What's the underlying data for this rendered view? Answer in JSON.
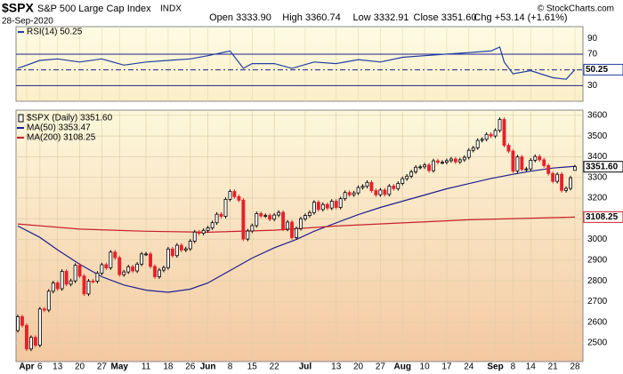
{
  "chart_data": {
    "type": "candlestick",
    "symbol": "$SPX",
    "name": "S&P 500 Large Cap Index",
    "exchange": "INDX",
    "date": "28-Sep-2020",
    "quote": [
      "Open 3333.90",
      "High 3360.74",
      "Low 3332.91",
      "Close 3351.60",
      "Chg +53.14 (+1.61%)"
    ],
    "credit": "© StockCharts.com",
    "x": [
      "2020-03-30",
      "2020-03-31",
      "2020-04-01",
      "2020-04-02",
      "2020-04-03",
      "2020-04-06",
      "2020-04-07",
      "2020-04-08",
      "2020-04-09",
      "2020-04-13",
      "2020-04-14",
      "2020-04-15",
      "2020-04-16",
      "2020-04-17",
      "2020-04-20",
      "2020-04-21",
      "2020-04-22",
      "2020-04-23",
      "2020-04-24",
      "2020-04-27",
      "2020-04-28",
      "2020-04-29",
      "2020-04-30",
      "2020-05-01",
      "2020-05-04",
      "2020-05-05",
      "2020-05-06",
      "2020-05-07",
      "2020-05-08",
      "2020-05-11",
      "2020-05-12",
      "2020-05-13",
      "2020-05-14",
      "2020-05-15",
      "2020-05-18",
      "2020-05-19",
      "2020-05-20",
      "2020-05-21",
      "2020-05-22",
      "2020-05-26",
      "2020-05-27",
      "2020-05-28",
      "2020-05-29",
      "2020-06-01",
      "2020-06-02",
      "2020-06-03",
      "2020-06-04",
      "2020-06-05",
      "2020-06-08",
      "2020-06-09",
      "2020-06-10",
      "2020-06-11",
      "2020-06-12",
      "2020-06-15",
      "2020-06-16",
      "2020-06-17",
      "2020-06-18",
      "2020-06-19",
      "2020-06-22",
      "2020-06-23",
      "2020-06-24",
      "2020-06-25",
      "2020-06-26",
      "2020-06-29",
      "2020-06-30",
      "2020-07-01",
      "2020-07-02",
      "2020-07-06",
      "2020-07-07",
      "2020-07-08",
      "2020-07-09",
      "2020-07-10",
      "2020-07-13",
      "2020-07-14",
      "2020-07-15",
      "2020-07-16",
      "2020-07-17",
      "2020-07-20",
      "2020-07-21",
      "2020-07-22",
      "2020-07-23",
      "2020-07-24",
      "2020-07-27",
      "2020-07-28",
      "2020-07-29",
      "2020-07-30",
      "2020-07-31",
      "2020-08-03",
      "2020-08-04",
      "2020-08-05",
      "2020-08-06",
      "2020-08-07",
      "2020-08-10",
      "2020-08-11",
      "2020-08-12",
      "2020-08-13",
      "2020-08-14",
      "2020-08-17",
      "2020-08-18",
      "2020-08-19",
      "2020-08-20",
      "2020-08-21",
      "2020-08-24",
      "2020-08-25",
      "2020-08-26",
      "2020-08-27",
      "2020-08-28",
      "2020-08-31",
      "2020-09-01",
      "2020-09-02",
      "2020-09-03",
      "2020-09-04",
      "2020-09-08",
      "2020-09-09",
      "2020-09-10",
      "2020-09-11",
      "2020-09-14",
      "2020-09-15",
      "2020-09-16",
      "2020-09-17",
      "2020-09-18",
      "2020-09-21",
      "2020-09-22",
      "2020-09-23",
      "2020-09-24",
      "2020-09-25",
      "2020-09-28"
    ],
    "open": [
      2560,
      2627,
      2585,
      2471,
      2527,
      2489,
      2664,
      2659,
      2750,
      2790,
      2762,
      2846,
      2784,
      2800,
      2875,
      2823,
      2737,
      2799,
      2798,
      2837,
      2878,
      2863,
      2939,
      2912,
      2830,
      2843,
      2868,
      2848,
      2881,
      2930,
      2930,
      2870,
      2820,
      2852,
      2864,
      2954,
      2922,
      2972,
      2949,
      2955,
      2992,
      3036,
      3030,
      3044,
      3056,
      3081,
      3122,
      3112,
      3194,
      3232,
      3207,
      3190,
      3002,
      3041,
      3067,
      3125,
      3114,
      3116,
      3098,
      3118,
      3131,
      3050,
      3084,
      3009,
      3053,
      3100,
      3116,
      3130,
      3180,
      3145,
      3169,
      3152,
      3185,
      3155,
      3197,
      3227,
      3216,
      3225,
      3251,
      3257,
      3276,
      3236,
      3216,
      3239,
      3218,
      3258,
      3246,
      3271,
      3294,
      3306,
      3327,
      3349,
      3351,
      3360,
      3333,
      3380,
      3373,
      3373,
      3381,
      3389,
      3375,
      3385,
      3397,
      3431,
      3443,
      3479,
      3484,
      3508,
      3500,
      3527,
      3580,
      3455,
      3427,
      3331,
      3399,
      3339,
      3341,
      3383,
      3401,
      3385,
      3357,
      3319,
      3281,
      3315,
      3237,
      3247,
      3333.9
    ],
    "high": [
      2637,
      2637,
      2595,
      2537,
      2537,
      2674,
      2674,
      2760,
      2800,
      2800,
      2856,
      2856,
      2810,
      2885,
      2885,
      2833,
      2809,
      2809,
      2847,
      2888,
      2888,
      2949,
      2949,
      2922,
      2853,
      2878,
      2878,
      2891,
      2940,
      2940,
      2940,
      2880,
      2862,
      2874,
      2964,
      2964,
      2982,
      2982,
      2965,
      3002,
      3046,
      3046,
      3054,
      3066,
      3091,
      3132,
      3132,
      3204,
      3242,
      3242,
      3217,
      3200,
      3051,
      3077,
      3135,
      3135,
      3126,
      3126,
      3128,
      3141,
      3141,
      3094,
      3094,
      3063,
      3110,
      3126,
      3140,
      3190,
      3190,
      3179,
      3179,
      3195,
      3195,
      3207,
      3237,
      3237,
      3235,
      3261,
      3267,
      3286,
      3286,
      3246,
      3249,
      3249,
      3268,
      3268,
      3281,
      3304,
      3316,
      3337,
      3359,
      3361,
      3370,
      3370,
      3390,
      3390,
      3383,
      3391,
      3399,
      3399,
      3395,
      3407,
      3441,
      3453,
      3489,
      3494,
      3518,
      3518,
      3537,
      3590,
      3590,
      3465,
      3437,
      3409,
      3409,
      3351,
      3393,
      3411,
      3411,
      3395,
      3367,
      3329,
      3325,
      3325,
      3257,
      3308,
      3360.74
    ],
    "low": [
      2550,
      2575,
      2461,
      2461,
      2479,
      2479,
      2649,
      2649,
      2740,
      2752,
      2752,
      2774,
      2774,
      2790,
      2813,
      2727,
      2727,
      2788,
      2788,
      2827,
      2853,
      2853,
      2902,
      2820,
      2820,
      2833,
      2838,
      2838,
      2871,
      2920,
      2860,
      2810,
      2810,
      2842,
      2854,
      2912,
      2912,
      2939,
      2939,
      2945,
      2982,
      3020,
      3020,
      3034,
      3046,
      3071,
      3102,
      3102,
      3184,
      3197,
      3180,
      2992,
      2992,
      3031,
      3057,
      3104,
      3104,
      3088,
      3088,
      3108,
      3040,
      3040,
      2999,
      2999,
      3043,
      3090,
      3106,
      3120,
      3135,
      3135,
      3142,
      3142,
      3145,
      3145,
      3187,
      3206,
      3206,
      3215,
      3241,
      3247,
      3226,
      3206,
      3206,
      3208,
      3208,
      3236,
      3236,
      3261,
      3284,
      3296,
      3317,
      3339,
      3341,
      3323,
      3323,
      3363,
      3363,
      3363,
      3371,
      3365,
      3365,
      3375,
      3387,
      3421,
      3433,
      3469,
      3474,
      3490,
      3490,
      3517,
      3445,
      3417,
      3321,
      3321,
      3329,
      3329,
      3331,
      3373,
      3375,
      3347,
      3309,
      3271,
      3271,
      3227,
      3227,
      3237,
      3332.91
    ],
    "close": [
      2627,
      2585,
      2471,
      2527,
      2489,
      2664,
      2659,
      2750,
      2790,
      2762,
      2846,
      2784,
      2800,
      2875,
      2823,
      2737,
      2799,
      2798,
      2837,
      2878,
      2863,
      2939,
      2912,
      2830,
      2843,
      2868,
      2848,
      2881,
      2930,
      2930,
      2870,
      2820,
      2852,
      2864,
      2954,
      2922,
      2972,
      2949,
      2955,
      2992,
      3036,
      3030,
      3044,
      3056,
      3081,
      3122,
      3112,
      3194,
      3232,
      3207,
      3190,
      3002,
      3041,
      3067,
      3125,
      3114,
      3116,
      3098,
      3118,
      3131,
      3050,
      3084,
      3009,
      3053,
      3100,
      3116,
      3130,
      3180,
      3145,
      3169,
      3152,
      3185,
      3155,
      3197,
      3227,
      3216,
      3225,
      3251,
      3257,
      3276,
      3236,
      3216,
      3239,
      3218,
      3258,
      3246,
      3271,
      3294,
      3306,
      3327,
      3349,
      3351,
      3360,
      3333,
      3380,
      3373,
      3373,
      3381,
      3389,
      3375,
      3385,
      3397,
      3431,
      3443,
      3479,
      3484,
      3508,
      3500,
      3527,
      3580,
      3455,
      3427,
      3331,
      3399,
      3339,
      3341,
      3383,
      3401,
      3385,
      3357,
      3319,
      3281,
      3315,
      3237,
      3247,
      3298,
      3351.6
    ],
    "up_color": "#000000",
    "down_color": "#e8202a",
    "price_legend": "$SPX (Daily) 3351.60",
    "price_last_label": "3351.60",
    "ylim": [
      2410,
      3625
    ],
    "yticks": [
      2500,
      2600,
      2700,
      2800,
      2900,
      3000,
      3100,
      3200,
      3300,
      3400,
      3500,
      3600
    ],
    "xticks": [
      {
        "value": "2020-04-01",
        "label": "Apr"
      },
      {
        "value": "2020-04-06",
        "label": "6"
      },
      {
        "value": "2020-04-13",
        "label": "13"
      },
      {
        "value": "2020-04-20",
        "label": "20"
      },
      {
        "value": "2020-04-27",
        "label": "27"
      },
      {
        "value": "2020-05-01",
        "label": "May"
      },
      {
        "value": "2020-05-11",
        "label": "11"
      },
      {
        "value": "2020-05-18",
        "label": "18"
      },
      {
        "value": "2020-05-26",
        "label": "26"
      },
      {
        "value": "2020-06-01",
        "label": "Jun"
      },
      {
        "value": "2020-06-08",
        "label": "8"
      },
      {
        "value": "2020-06-15",
        "label": "15"
      },
      {
        "value": "2020-06-22",
        "label": "22"
      },
      {
        "value": "2020-07-01",
        "label": "Jul"
      },
      {
        "value": "2020-07-13",
        "label": "13"
      },
      {
        "value": "2020-07-20",
        "label": "20"
      },
      {
        "value": "2020-07-27",
        "label": "27"
      },
      {
        "value": "2020-08-03",
        "label": "Aug"
      },
      {
        "value": "2020-08-10",
        "label": "10"
      },
      {
        "value": "2020-08-17",
        "label": "17"
      },
      {
        "value": "2020-08-24",
        "label": "24"
      },
      {
        "value": "2020-09-01",
        "label": "Sep"
      },
      {
        "value": "2020-09-08",
        "label": "8"
      },
      {
        "value": "2020-09-14",
        "label": "14"
      },
      {
        "value": "2020-09-21",
        "label": "21"
      },
      {
        "value": "2020-09-28",
        "label": "28"
      }
    ],
    "grid": true,
    "overlays": [
      {
        "name": "MA(50) 3353.47",
        "color": "#1f1f8f",
        "last_label": "3353.47",
        "x": [
          "2020-03-30",
          "2020-04-06",
          "2020-04-13",
          "2020-04-20",
          "2020-04-27",
          "2020-05-04",
          "2020-05-11",
          "2020-05-18",
          "2020-05-26",
          "2020-06-01",
          "2020-06-08",
          "2020-06-15",
          "2020-06-22",
          "2020-06-29",
          "2020-07-06",
          "2020-07-13",
          "2020-07-20",
          "2020-07-27",
          "2020-08-03",
          "2020-08-10",
          "2020-08-17",
          "2020-08-24",
          "2020-08-31",
          "2020-09-08",
          "2020-09-14",
          "2020-09-21",
          "2020-09-28"
        ],
        "values": [
          3065,
          3010,
          2950,
          2880,
          2820,
          2780,
          2755,
          2745,
          2760,
          2790,
          2850,
          2910,
          2960,
          3000,
          3040,
          3080,
          3120,
          3155,
          3185,
          3215,
          3245,
          3270,
          3295,
          3315,
          3330,
          3345,
          3353.47
        ]
      },
      {
        "name": "MA(200) 3108.25",
        "color": "#c8202a",
        "last_label": "3108.25",
        "x": [
          "2020-03-30",
          "2020-04-20",
          "2020-05-11",
          "2020-06-01",
          "2020-06-22",
          "2020-07-13",
          "2020-08-03",
          "2020-08-24",
          "2020-09-28"
        ],
        "values": [
          3075,
          3050,
          3040,
          3035,
          3045,
          3065,
          3080,
          3095,
          3108.25
        ]
      }
    ],
    "rsi": {
      "name": "RSI(14) 50.25",
      "color": "#1f3fa0",
      "last_label": "50.25",
      "x": [
        "2020-03-30",
        "2020-04-06",
        "2020-04-13",
        "2020-04-20",
        "2020-04-27",
        "2020-05-04",
        "2020-05-11",
        "2020-05-18",
        "2020-05-26",
        "2020-06-01",
        "2020-06-08",
        "2020-06-11",
        "2020-06-15",
        "2020-06-22",
        "2020-06-26",
        "2020-07-06",
        "2020-07-13",
        "2020-07-20",
        "2020-07-27",
        "2020-08-03",
        "2020-08-10",
        "2020-08-17",
        "2020-08-24",
        "2020-08-31",
        "2020-09-02",
        "2020-09-03",
        "2020-09-08",
        "2020-09-14",
        "2020-09-21",
        "2020-09-24",
        "2020-09-28"
      ],
      "values": [
        52,
        62,
        64,
        60,
        64,
        56,
        60,
        62,
        64,
        68,
        74,
        52,
        58,
        58,
        52,
        60,
        58,
        63,
        60,
        66,
        68,
        70,
        72,
        74,
        79,
        60,
        45,
        49,
        40,
        38,
        50.25
      ],
      "ylim": [
        10,
        105
      ],
      "yticks": [
        90,
        70,
        50,
        30
      ],
      "bands": [
        30,
        70
      ],
      "center": 50
    }
  }
}
